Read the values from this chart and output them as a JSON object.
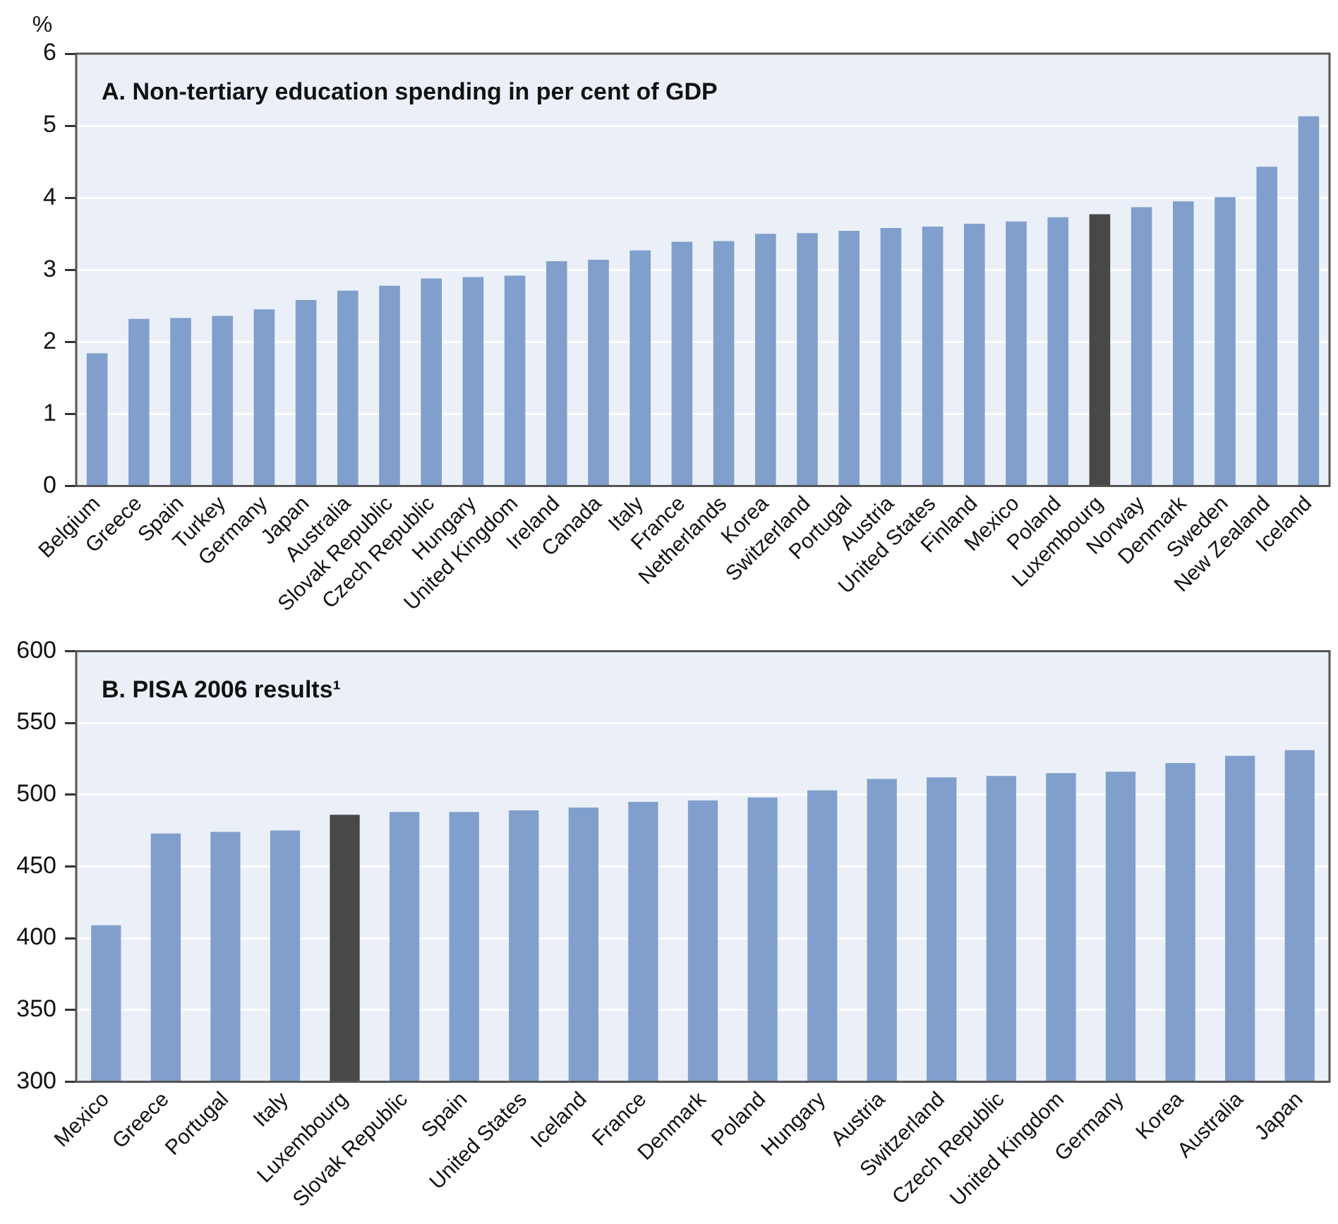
{
  "chart_data": [
    {
      "type": "bar",
      "title": "A. Non-tertiary education spending in per cent of GDP",
      "ylabel": "%",
      "categories": [
        "Belgium",
        "Greece",
        "Spain",
        "Turkey",
        "Germany",
        "Japan",
        "Australia",
        "Slovak Republic",
        "Czech Republic",
        "Hungary",
        "United Kingdom",
        "Ireland",
        "Canada",
        "Italy",
        "France",
        "Netherlands",
        "Korea",
        "Switzerland",
        "Portugal",
        "Austria",
        "United States",
        "Finland",
        "Mexico",
        "Poland",
        "Luxembourg",
        "Norway",
        "Denmark",
        "Sweden",
        "New Zealand",
        "Iceland"
      ],
      "values": [
        1.84,
        2.32,
        2.33,
        2.36,
        2.45,
        2.58,
        2.71,
        2.78,
        2.88,
        2.9,
        2.92,
        3.12,
        3.14,
        3.27,
        3.39,
        3.4,
        3.5,
        3.51,
        3.54,
        3.58,
        3.6,
        3.64,
        3.67,
        3.73,
        3.77,
        3.87,
        3.95,
        4.01,
        4.43,
        5.13
      ],
      "colors": [
        "#819fcc",
        "#819fcc",
        "#819fcc",
        "#819fcc",
        "#819fcc",
        "#819fcc",
        "#819fcc",
        "#819fcc",
        "#819fcc",
        "#819fcc",
        "#819fcc",
        "#819fcc",
        "#819fcc",
        "#819fcc",
        "#819fcc",
        "#819fcc",
        "#819fcc",
        "#819fcc",
        "#819fcc",
        "#819fcc",
        "#819fcc",
        "#819fcc",
        "#819fcc",
        "#819fcc",
        "#484848",
        "#819fcc",
        "#819fcc",
        "#819fcc",
        "#819fcc",
        "#819fcc"
      ],
      "ylim": [
        0,
        6
      ],
      "yticks": [
        0,
        1,
        2,
        3,
        4,
        5,
        6
      ],
      "grid": "y",
      "legend": false
    },
    {
      "type": "bar",
      "title": "B. PISA 2006 results¹",
      "categories": [
        "Mexico",
        "Greece",
        "Portugal",
        "Italy",
        "Luxembourg",
        "Slovak Republic",
        "Spain",
        "United States",
        "Iceland",
        "France",
        "Denmark",
        "Poland",
        "Hungary",
        "Austria",
        "Switzerland",
        "Czech Republic",
        "United Kingdom",
        "Germany",
        "Korea",
        "Australia",
        "Japan"
      ],
      "values": [
        409,
        473,
        474,
        475,
        486,
        488,
        488,
        489,
        491,
        495,
        496,
        498,
        503,
        511,
        512,
        513,
        515,
        516,
        522,
        527,
        531
      ],
      "colors": [
        "#819fcc",
        "#819fcc",
        "#819fcc",
        "#819fcc",
        "#484848",
        "#819fcc",
        "#819fcc",
        "#819fcc",
        "#819fcc",
        "#819fcc",
        "#819fcc",
        "#819fcc",
        "#819fcc",
        "#819fcc",
        "#819fcc",
        "#819fcc",
        "#819fcc",
        "#819fcc",
        "#819fcc",
        "#819fcc",
        "#819fcc"
      ],
      "ylim": [
        300,
        600
      ],
      "yticks": [
        300,
        350,
        400,
        450,
        500,
        550,
        600
      ],
      "grid": "y",
      "legend": false
    }
  ]
}
